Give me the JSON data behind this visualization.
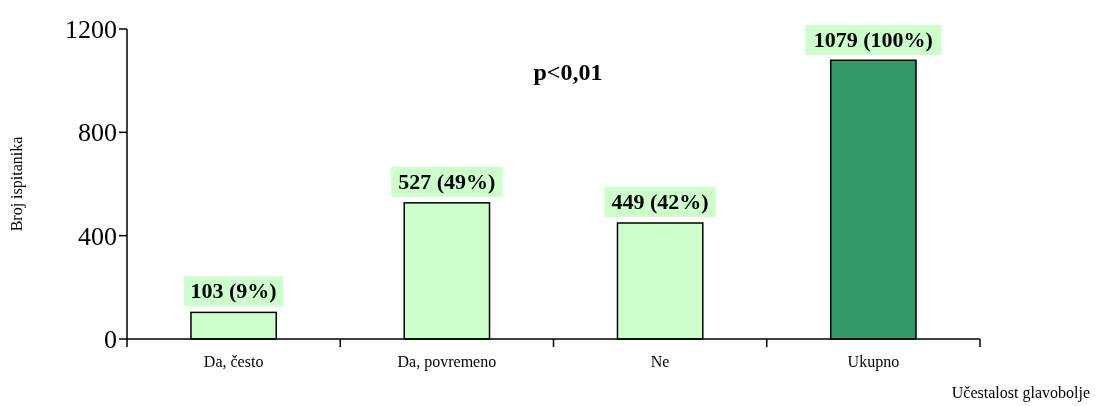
{
  "chart_data": {
    "type": "bar",
    "ylabel": "Broj ispitanika",
    "xlabel": "Učestalost glavobolje",
    "categories": [
      "Da, često",
      "Da, povremeno",
      "Ne",
      "Ukupno"
    ],
    "values": [
      103,
      527,
      449,
      1079
    ],
    "colors": [
      "#ccffcc",
      "#ccffcc",
      "#ccffcc",
      "#339966"
    ],
    "value_labels": [
      "103 (9%)",
      "527 (49%)",
      "449 (42%)",
      "1079 (100%)"
    ],
    "ylim": [
      0,
      1200
    ],
    "yticks": [
      0,
      400,
      800,
      1200
    ],
    "annotations": [
      "p<0,01"
    ],
    "grid": false
  }
}
